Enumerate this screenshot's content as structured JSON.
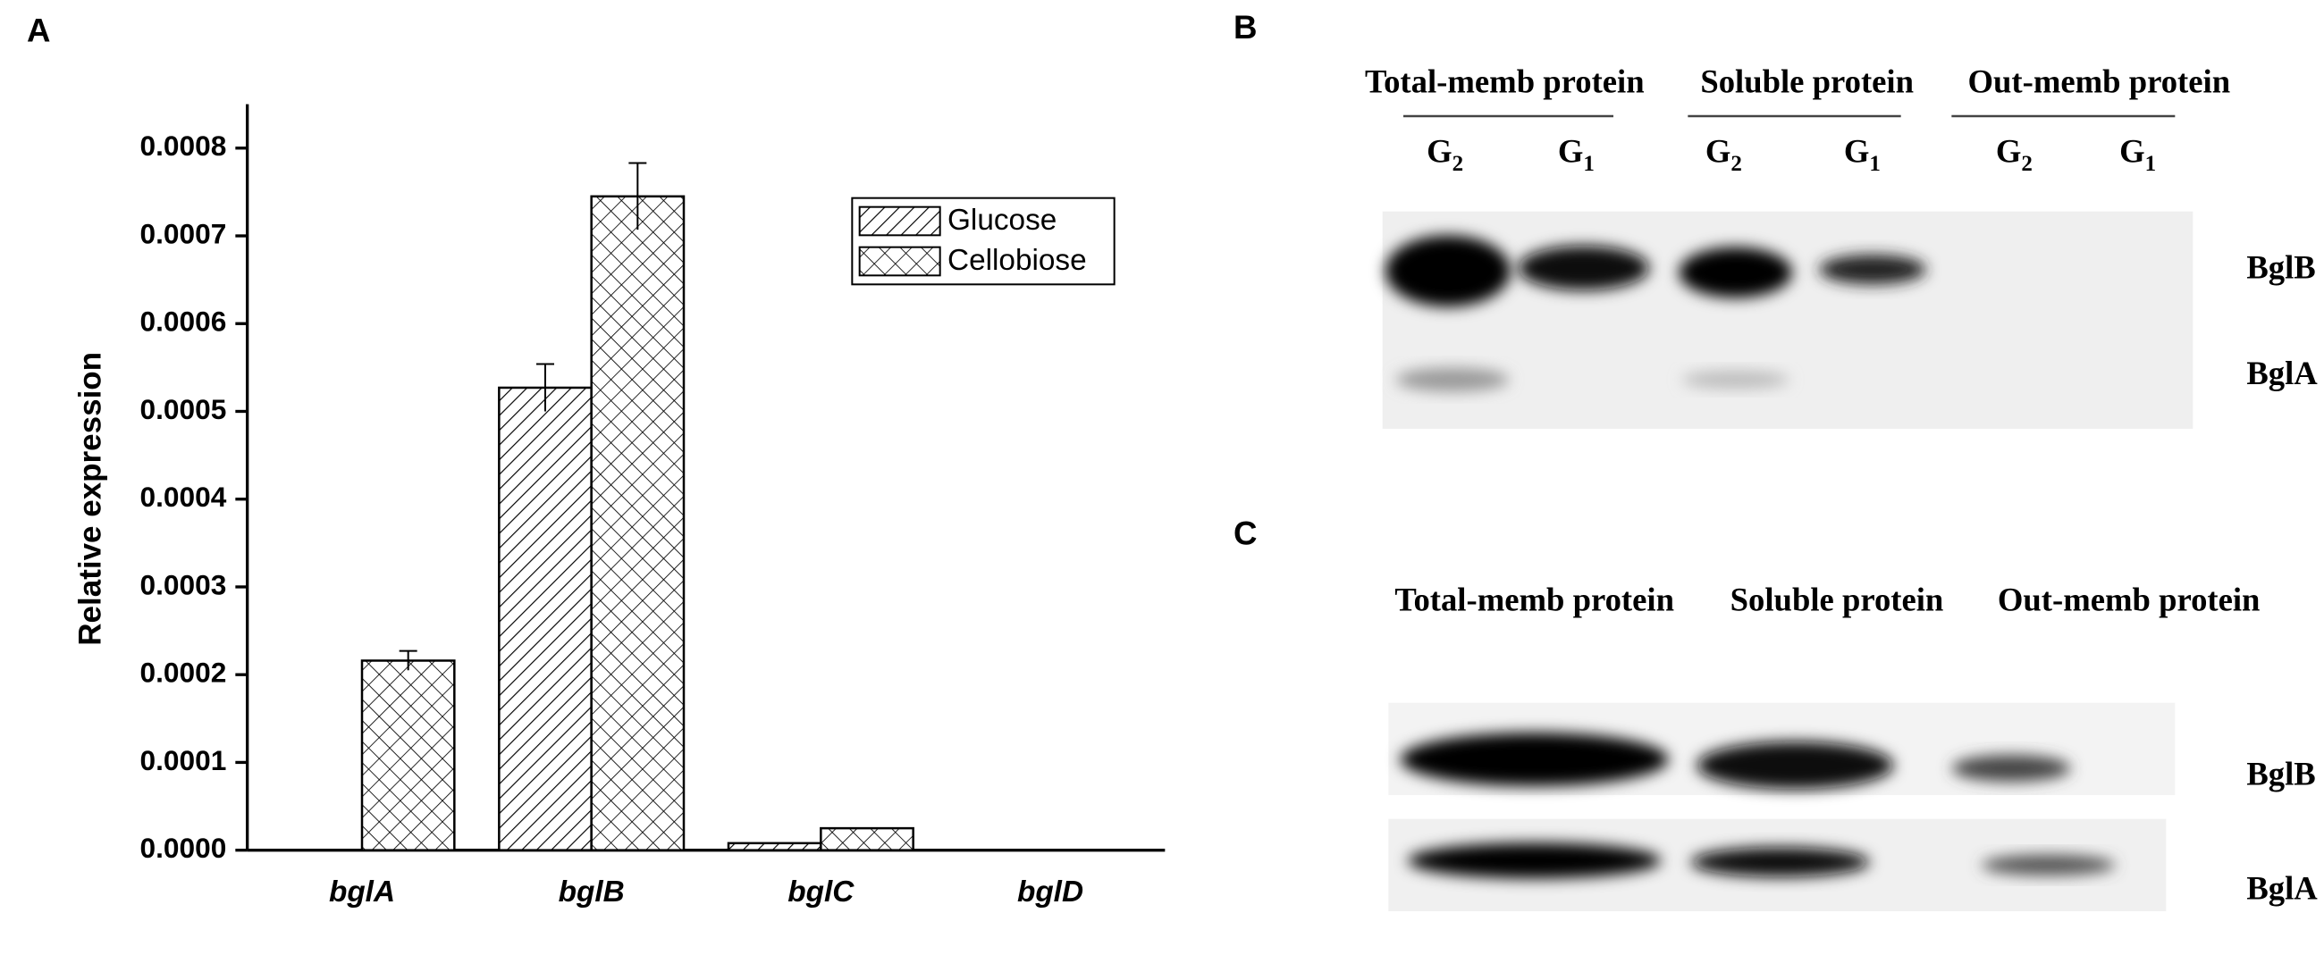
{
  "panels": {
    "a": "A",
    "b": "B",
    "c": "C"
  },
  "chart_data": {
    "type": "bar",
    "y_label": "Relative expression",
    "categories": [
      "bglA",
      "bglB",
      "bglC",
      "bglD"
    ],
    "series": [
      {
        "name": "Glucose",
        "color": "#000000",
        "hatch": "diagonal",
        "values": [
          0,
          0.000527,
          8e-06,
          0
        ],
        "errors": [
          null,
          2.7e-05,
          null,
          null
        ]
      },
      {
        "name": "Cellobiose",
        "color": "#000000",
        "hatch": "crosshatch",
        "values": [
          0.000216,
          0.000745,
          2.5e-05,
          0
        ],
        "errors": [
          1.1e-05,
          3.8e-05,
          null,
          null
        ]
      }
    ],
    "ylim": [
      0,
      0.00085
    ],
    "yticks": [
      {
        "value": 0,
        "label": "0.0000"
      },
      0.0001,
      0.0002,
      0.0003,
      0.0004,
      0.0005,
      0.0006,
      0.0007,
      0.0008
    ],
    "legend": "upper right"
  },
  "blot_b": {
    "groups": [
      "Total-memb protein",
      "Soluble protein",
      "Out-memb protein"
    ],
    "lanes": [
      {
        "letter": "G",
        "sub": "2"
      },
      {
        "letter": "G",
        "sub": "1"
      },
      {
        "letter": "G",
        "sub": "2"
      },
      {
        "letter": "G",
        "sub": "1"
      },
      {
        "letter": "G",
        "sub": "2"
      },
      {
        "letter": "G",
        "sub": "1"
      }
    ],
    "bands": [
      "BglB",
      "BglA"
    ]
  },
  "blot_c": {
    "groups": [
      "Total-memb protein",
      "Soluble protein",
      "Out-memb protein"
    ],
    "bands": [
      "BglB",
      "BglA"
    ]
  }
}
